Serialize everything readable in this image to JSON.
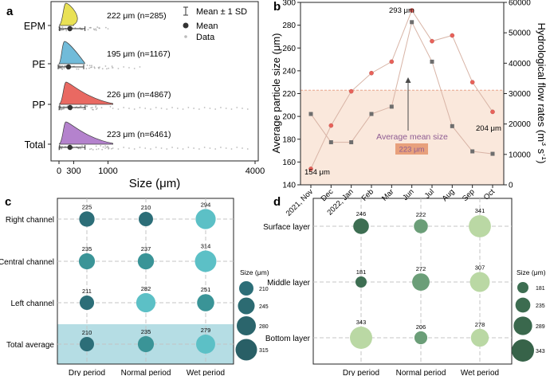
{
  "colors": {
    "EPM": "#e8e04c",
    "PE": "#6ab8d8",
    "PP": "#e8625a",
    "Total": "#b07ccb",
    "red_point": "#e8625a",
    "gray_point": "#6e6e6e",
    "line": "#d8b4a6",
    "band": "#fae8dc",
    "band_line": "#e8a58c",
    "annot": "#8e5c93",
    "annot_box": "#e8a07c",
    "bubble_c_small": "#2c6e78",
    "bubble_c_mid": "#3a9497",
    "bubble_c_large": "#5cc0c6",
    "bubble_d_dark": "#3d6e52",
    "bubble_d_mid": "#6b9e78",
    "bubble_d_light": "#bad8a4",
    "highlight_c": "#b5dde4"
  },
  "chart_data": [
    {
      "panel": "a",
      "type": "raincloud",
      "xlabel": "Size (μm)",
      "xlim": [
        0,
        4000
      ],
      "x_ticks": [
        0,
        300,
        1000,
        4000
      ],
      "x_tick_labels": [
        "0",
        "300",
        "1000",
        "4000"
      ],
      "categories": [
        "EPM",
        "PE",
        "PP",
        "Total"
      ],
      "groups": [
        {
          "name": "EPM",
          "mean": 222,
          "n": 285,
          "label": "222 μm  (n=285)",
          "data_max": 1000
        },
        {
          "name": "PE",
          "mean": 195,
          "n": 1167,
          "label": "195 μm  (n=1167)",
          "data_max": 1750
        },
        {
          "name": "PP",
          "mean": 226,
          "n": 4867,
          "label": "226 μm  (n=4867)",
          "data_max": 3900
        },
        {
          "name": "Total",
          "mean": 223,
          "n": 6461,
          "label": "223 μm  (n=6461)",
          "data_max": 3900
        }
      ],
      "legend": [
        "Mean ± 1 SD",
        "Mean",
        "Data"
      ]
    },
    {
      "panel": "b",
      "type": "line",
      "categories": [
        "2021, Nov",
        "Dec",
        "2022, Jan",
        "Feb",
        "Mar",
        "Jun",
        "Jul",
        "Aug",
        "Sep",
        "Oct"
      ],
      "ylabel": "Average particle size (μm)",
      "ylim": [
        140,
        300
      ],
      "y_ticks": [
        140,
        160,
        180,
        200,
        220,
        240,
        260,
        280,
        300
      ],
      "y2label": "Hydrological flow rates (m³ s⁻¹)",
      "y2lim": [
        0,
        60000
      ],
      "y2_ticks": [
        "0",
        "10000",
        "20000",
        "30000",
        "40000",
        "50000",
        "60000"
      ],
      "series": [
        {
          "name": "Average particle size",
          "axis": "left",
          "values": [
            154,
            192,
            222,
            238,
            248,
            293,
            266,
            271,
            230,
            204
          ]
        },
        {
          "name": "Hydrological flow rates",
          "axis": "right",
          "values": [
            23300,
            14000,
            14000,
            23300,
            25700,
            53500,
            40500,
            19300,
            11000,
            10200
          ]
        }
      ],
      "annotations": {
        "label_154": "154 μm",
        "label_293": "293 μm",
        "label_204": "204 μm",
        "mean_label": "Average mean size",
        "mean_value": "223 μm",
        "mean_line": 223
      }
    },
    {
      "panel": "c",
      "type": "bubble",
      "rows": [
        "Right channel",
        "Central channel",
        "Left channel",
        "Total average"
      ],
      "cols": [
        "Dry period",
        "Normal period",
        "Wet period"
      ],
      "values": [
        [
          225,
          210,
          294
        ],
        [
          235,
          237,
          314
        ],
        [
          211,
          282,
          251
        ],
        [
          210,
          235,
          279
        ]
      ],
      "legend_title": "Size (μm)",
      "legend_values": [
        210,
        245,
        280,
        315
      ]
    },
    {
      "panel": "d",
      "type": "bubble",
      "rows": [
        "Surface layer",
        "Middle layer",
        "Bottom layer"
      ],
      "cols": [
        "Dry period",
        "Normal period",
        "Wet period"
      ],
      "values": [
        [
          246,
          222,
          341
        ],
        [
          181,
          272,
          307
        ],
        [
          343,
          206,
          278
        ]
      ],
      "legend_title": "Size (μm)",
      "legend_values": [
        181,
        235,
        289,
        343
      ]
    }
  ],
  "panel_labels": {
    "a": "a",
    "b": "b",
    "c": "c",
    "d": "d"
  },
  "legend_a": {
    "sd": "Mean ± 1 SD",
    "mean": "Mean",
    "data": "Data"
  },
  "axis_text": {
    "a_x": "Size (μm)",
    "b_y": "Average particle size (μm)",
    "b_y2_main": "Hydrological flow rates (m",
    "b_y2_sup1": "3",
    "b_y2_mid": " s",
    "b_y2_sup2": "-1",
    "b_y2_end": ")",
    "c_legend": "Size (μm)",
    "d_legend": "Size (μm)"
  }
}
